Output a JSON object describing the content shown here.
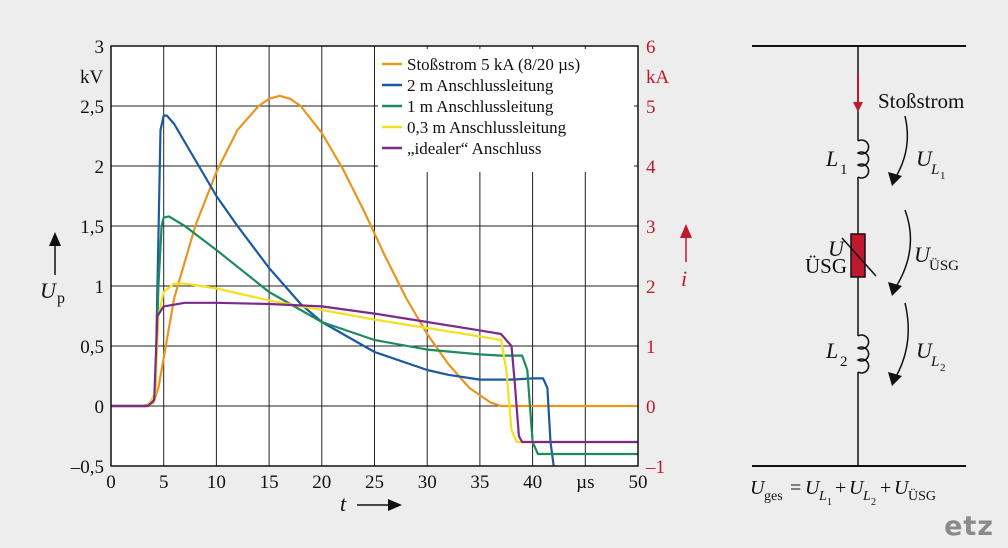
{
  "chart_data": {
    "type": "line",
    "xlabel": "t",
    "x_unit": "µs",
    "xlim": [
      0,
      50
    ],
    "x_ticks": [
      "0",
      "5",
      "10",
      "15",
      "20",
      "25",
      "30",
      "35",
      "40",
      "µs",
      "50"
    ],
    "ylabel": "U",
    "ylabel_sub": "p",
    "y_unit": "kV",
    "ylim": [
      -0.5,
      3
    ],
    "y_ticks": [
      "–0,5",
      "0",
      "0,5",
      "1",
      "1,5",
      "2",
      "2,5",
      "3"
    ],
    "y2label": "i",
    "y2_unit": "kA",
    "y2lim": [
      -1,
      6
    ],
    "y2_ticks": [
      "–1",
      "0",
      "1",
      "2",
      "3",
      "4",
      "5",
      "6"
    ],
    "grid": true,
    "legend_position": "top-right",
    "colors": {
      "orange": "#e8961e",
      "blue": "#1b5aa0",
      "green": "#1f8a5b",
      "yellow": "#f4e01d",
      "purple": "#7b2a8c",
      "right_axis": "#c0182f"
    },
    "series": [
      {
        "name": "Stoßstrom 5 kA (8/20 µs)",
        "axis": "right",
        "color": "#e8961e",
        "x": [
          0,
          3,
          4,
          4.5,
          5,
          6,
          8,
          10,
          12,
          14,
          15,
          16,
          17,
          18,
          20,
          22,
          24,
          26,
          28,
          30,
          32,
          34,
          36,
          37,
          38,
          50
        ],
        "y": [
          0,
          0,
          0.05,
          0.3,
          0.8,
          1.8,
          3.0,
          3.9,
          4.6,
          5.0,
          5.12,
          5.17,
          5.12,
          5.0,
          4.55,
          3.95,
          3.25,
          2.5,
          1.8,
          1.2,
          0.7,
          0.3,
          0.06,
          0,
          0,
          0
        ]
      },
      {
        "name": "2 m Anschlussleitung",
        "axis": "left",
        "color": "#1b5aa0",
        "x": [
          0,
          3.5,
          4.2,
          4.5,
          4.7,
          5,
          5.3,
          6,
          8,
          10,
          12,
          15,
          18,
          20,
          25,
          30,
          32,
          35,
          38,
          40,
          41,
          41.4,
          41.7,
          42,
          44
        ],
        "y": [
          0,
          0,
          0.1,
          1.4,
          2.3,
          2.42,
          2.42,
          2.35,
          2.05,
          1.75,
          1.5,
          1.15,
          0.85,
          0.7,
          0.45,
          0.3,
          0.26,
          0.22,
          0.22,
          0.23,
          0.23,
          0.15,
          -0.3,
          -0.5,
          -0.55
        ]
      },
      {
        "name": "1 m Anschlussleitung",
        "axis": "left",
        "color": "#1f8a5b",
        "x": [
          0,
          3.5,
          4.2,
          4.5,
          4.8,
          5,
          5.5,
          7,
          10,
          15,
          20,
          25,
          30,
          35,
          37,
          39,
          39.5,
          40,
          40.5,
          50
        ],
        "y": [
          0,
          0,
          0.1,
          1.0,
          1.5,
          1.57,
          1.58,
          1.5,
          1.3,
          0.95,
          0.7,
          0.55,
          0.47,
          0.43,
          0.42,
          0.42,
          0.3,
          -0.3,
          -0.4,
          -0.4
        ]
      },
      {
        "name": "0,3 m Anschlussleitung",
        "axis": "left",
        "color": "#f4e01d",
        "x": [
          0,
          3.5,
          4.2,
          4.5,
          5,
          6,
          7,
          10,
          15,
          20,
          25,
          30,
          35,
          37,
          37.5,
          38,
          38.5,
          50
        ],
        "y": [
          0,
          0,
          0.1,
          0.75,
          0.95,
          1.02,
          1.02,
          0.98,
          0.88,
          0.8,
          0.72,
          0.65,
          0.58,
          0.55,
          0.3,
          -0.2,
          -0.3,
          -0.3
        ]
      },
      {
        "name": "„idealer“ Anschluss",
        "axis": "left",
        "color": "#7b2a8c",
        "x": [
          0,
          3.5,
          4.1,
          4.4,
          5,
          7,
          10,
          15,
          20,
          25,
          30,
          35,
          37,
          38,
          38.3,
          38.7,
          39,
          50
        ],
        "y": [
          0,
          0,
          0.05,
          0.75,
          0.83,
          0.86,
          0.86,
          0.85,
          0.83,
          0.77,
          0.7,
          0.63,
          0.6,
          0.5,
          0.2,
          -0.25,
          -0.3,
          -0.3
        ]
      }
    ]
  },
  "schematic": {
    "current_label": "Stoßstrom",
    "l1": "L",
    "l1_sub": "1",
    "l2": "L",
    "l2_sub": "2",
    "u_label": "U",
    "device_label": "ÜSG",
    "u_l1": "U",
    "u_l1_sub": "L",
    "u_l1_subsub": "1",
    "u_usg": "U",
    "u_usg_sub": "ÜSG",
    "u_l2": "U",
    "u_l2_sub": "L",
    "u_l2_subsub": "2",
    "formula": {
      "u1": "U",
      "s1": "ges",
      "eq": "=",
      "u2": "U",
      "s2": "L",
      "ss2": "1",
      "plus1": "+",
      "u3": "U",
      "s3": "L",
      "ss3": "2",
      "plus2": "+",
      "u4": "U",
      "s4": "ÜSG"
    },
    "colors": {
      "arrow": "#c0182f",
      "device": "#c0182f"
    }
  },
  "logo": "etz"
}
